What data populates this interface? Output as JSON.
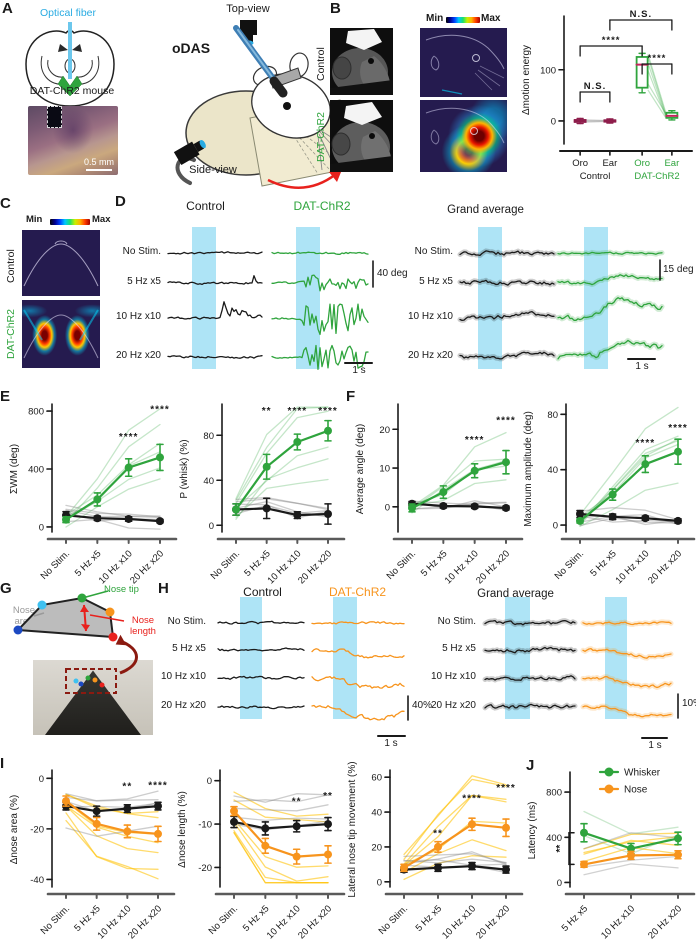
{
  "colors": {
    "green": "#2fa43d",
    "orange": "#f7941d",
    "black": "#1a1a1a",
    "stim_blue": "#aee4f6",
    "cyan": "#29abe2",
    "crimson": "#c2255c",
    "dark_red": "#8b1a10",
    "gray_label": "#9a9a9a"
  },
  "panels": {
    "a": "A",
    "b": "B",
    "c": "C",
    "d": "D",
    "e": "E",
    "f": "F",
    "g": "G",
    "h": "H",
    "i": "I",
    "j": "J"
  },
  "panelA": {
    "fiber": "Optical fiber",
    "mouse": "DAT-ChR2 mouse",
    "scale": "0.5 mm"
  },
  "setup": {
    "odas": "oDAS",
    "top": "Top-view",
    "side": "Side-view"
  },
  "panelB": {
    "control": "Control",
    "dat": "DAT-ChR2",
    "min": "Min",
    "max": "Max"
  },
  "panelC": {
    "control": "Control",
    "dat": "DAT-ChR2",
    "min": "Min",
    "max": "Max"
  },
  "panelD": {
    "control": "Control",
    "dat": "DAT-ChR2",
    "ga": "Grand average",
    "rows": [
      "No Stim.",
      "5 Hz x5",
      "10 Hz x10",
      "20 Hz x20"
    ],
    "scales": {
      "left": "40 deg",
      "right": "15 deg",
      "time": "1 s"
    }
  },
  "panelG": {
    "tip": "Nose tip",
    "area": "Nose area",
    "length": "Nose length"
  },
  "panelH": {
    "control": "Control",
    "dat": "DAT-ChR2",
    "ga": "Grand average",
    "rows": [
      "No Stim.",
      "5 Hz x5",
      "10 Hz x10",
      "20 Hz x20"
    ],
    "scales": {
      "left": "40%",
      "right": "10%",
      "time": "1 s"
    }
  },
  "chart_data": [
    {
      "id": "b-motion",
      "type": "box",
      "ylabel": "Δmotion energy",
      "ylim": [
        -45,
        205
      ],
      "yticks": [
        0,
        100
      ],
      "categories": [
        "Oro",
        "Ear",
        "Oro",
        "Ear"
      ],
      "cat_colors": [
        "#1a1a1a",
        "#1a1a1a",
        "#2fa43d",
        "#2fa43d"
      ],
      "group_labels": [
        {
          "text": "Control",
          "color": "#1a1a1a"
        },
        {
          "text": "DAT-ChR2",
          "color": "#2fa43d"
        }
      ],
      "boxes": [
        {
          "lo": -5,
          "q1": -2,
          "med": 0,
          "q3": 2,
          "hi": 5,
          "edge": "#8e1d4b",
          "median": "#8e1d4b"
        },
        {
          "lo": -4,
          "q1": -1.5,
          "med": 0,
          "q3": 1.5,
          "hi": 4,
          "edge": "#8e1d4b",
          "median": "#8e1d4b"
        },
        {
          "lo": 55,
          "q1": 65,
          "med": 110,
          "q3": 125,
          "hi": 132,
          "edge": "#2fa43d",
          "median": "#c2255c"
        },
        {
          "lo": 2,
          "q1": 6,
          "med": 10,
          "q3": 16,
          "hi": 20,
          "edge": "#2fa43d",
          "median": "#c2255c"
        }
      ],
      "pairs": [
        {
          "from": 2,
          "to": 3,
          "color": "rgba(47,164,61,0.3)",
          "values": [
            [
              130,
              16
            ],
            [
              124,
              12
            ],
            [
              112,
              10
            ],
            [
              98,
              8
            ],
            [
              72,
              14
            ],
            [
              60,
              6
            ]
          ]
        },
        {
          "from": 0,
          "to": 1,
          "color": "rgba(140,140,140,0.45)",
          "values": [
            [
              2,
              1
            ],
            [
              0,
              0
            ],
            [
              -2,
              -1
            ]
          ]
        }
      ],
      "brackets": [
        {
          "x1": 0,
          "x2": 1,
          "y": 88,
          "text": "N.S."
        },
        {
          "x1": 0,
          "x2": 2,
          "y": 42,
          "text": "****"
        },
        {
          "x1": 2,
          "x2": 3,
          "y": 60,
          "text": "****"
        },
        {
          "x1": 1,
          "x2": 3,
          "y": 16,
          "text": "N.S."
        }
      ]
    },
    {
      "id": "e1",
      "type": "line",
      "seed": 3,
      "ylabel": "ΣWM (deg)",
      "ylim": [
        -35,
        835
      ],
      "yticks": [
        0,
        400,
        800
      ],
      "categories": [
        "No Stim.",
        "5 Hz x5",
        "10 Hz x10",
        "20 Hz x20"
      ],
      "series": [
        {
          "name": "Control",
          "color": "#1a1a1a",
          "values": [
            80,
            60,
            55,
            40
          ],
          "errs": [
            25,
            15,
            15,
            12
          ]
        },
        {
          "name": "DAT-ChR2",
          "color": "#2fa43d",
          "values": [
            50,
            190,
            410,
            480
          ],
          "errs": [
            20,
            45,
            60,
            90
          ]
        }
      ],
      "faint": [
        {
          "series": 1,
          "color": "rgba(47,164,61,0.28)",
          "n": 6
        },
        {
          "series": 0,
          "color": "rgba(130,130,130,0.4)",
          "n": 5
        }
      ],
      "sig": [
        {
          "i": 2,
          "text": "****",
          "y": 600
        },
        {
          "i": 3,
          "text": "****",
          "y": 790
        }
      ]
    },
    {
      "id": "e2",
      "type": "line",
      "seed": 5,
      "ylabel": "P (whisk) (%)",
      "ylim": [
        -6,
        106
      ],
      "yticks": [
        0,
        40,
        80
      ],
      "categories": [
        "No Stim.",
        "5 Hz x5",
        "10 Hz x10",
        "20 Hz x20"
      ],
      "series": [
        {
          "name": "Control",
          "color": "#1a1a1a",
          "values": [
            14,
            15,
            9,
            10
          ],
          "errs": [
            5,
            9,
            3,
            9
          ]
        },
        {
          "name": "DAT-ChR2",
          "color": "#2fa43d",
          "values": [
            14,
            52,
            74,
            84
          ],
          "errs": [
            5,
            11,
            7,
            9
          ]
        }
      ],
      "faint": [
        {
          "series": 1,
          "color": "rgba(47,164,61,0.28)",
          "n": 6
        },
        {
          "series": 0,
          "color": "rgba(130,130,130,0.4)",
          "n": 5
        }
      ],
      "sig": [
        {
          "i": 1,
          "text": "**",
          "y": 99
        },
        {
          "i": 2,
          "text": "****",
          "y": 99
        },
        {
          "i": 3,
          "text": "****",
          "y": 99
        }
      ]
    },
    {
      "id": "f1",
      "type": "line",
      "seed": 8,
      "ylabel": "Average angle (deg)",
      "ylim": [
        -6.5,
        26
      ],
      "yticks": [
        0,
        10,
        20
      ],
      "categories": [
        "No Stim.",
        "5 Hz x5",
        "10 Hz x10",
        "20 Hz x20"
      ],
      "series": [
        {
          "name": "Control",
          "color": "#1a1a1a",
          "values": [
            0.8,
            0.2,
            0.1,
            -0.3
          ],
          "errs": [
            0.6,
            0.5,
            0.5,
            0.5
          ]
        },
        {
          "name": "DAT-ChR2",
          "color": "#2fa43d",
          "values": [
            -0.3,
            3.8,
            9.3,
            11.5
          ],
          "errs": [
            1,
            1.6,
            1.8,
            3
          ]
        }
      ],
      "faint": [
        {
          "series": 1,
          "color": "rgba(47,164,61,0.28)",
          "n": 6
        },
        {
          "series": 0,
          "color": "rgba(130,130,130,0.4)",
          "n": 4
        }
      ],
      "sig": [
        {
          "i": 2,
          "text": "****",
          "y": 16.5
        },
        {
          "i": 3,
          "text": "****",
          "y": 21.5
        }
      ]
    },
    {
      "id": "f2",
      "type": "line",
      "seed": 11,
      "ylabel": "Maximum amplitude (deg)",
      "ylim": [
        -5,
        86
      ],
      "yticks": [
        0,
        40,
        80
      ],
      "categories": [
        "No Stim.",
        "5 Hz x5",
        "10 Hz x10",
        "20 Hz x20"
      ],
      "series": [
        {
          "name": "Control",
          "color": "#1a1a1a",
          "values": [
            8,
            6,
            5,
            3
          ],
          "errs": [
            2.5,
            2,
            1.5,
            1.5
          ]
        },
        {
          "name": "DAT-ChR2",
          "color": "#2fa43d",
          "values": [
            3,
            22,
            44,
            53
          ],
          "errs": [
            1.5,
            4,
            6,
            9
          ]
        }
      ],
      "faint": [
        {
          "series": 1,
          "color": "rgba(47,164,61,0.28)",
          "n": 6
        },
        {
          "series": 0,
          "color": "rgba(130,130,130,0.4)",
          "n": 5
        }
      ],
      "sig": [
        {
          "i": 2,
          "text": "****",
          "y": 57
        },
        {
          "i": 3,
          "text": "****",
          "y": 68
        }
      ]
    },
    {
      "id": "i1",
      "type": "line",
      "seed": 21,
      "ylabel": "Δnose area (%)",
      "ylim": [
        -43,
        2.5
      ],
      "yticks": [
        0,
        -20,
        -40
      ],
      "categories": [
        "No Stim.",
        "5 Hz x5",
        "10 Hz x10",
        "20 Hz x20"
      ],
      "series": [
        {
          "name": "Control",
          "color": "#1a1a1a",
          "values": [
            -11,
            -13,
            -12,
            -11
          ],
          "errs": [
            1.5,
            2,
            1.5,
            1.5
          ]
        },
        {
          "name": "DAT-ChR2",
          "color": "#f7941d",
          "values": [
            -9,
            -18,
            -21,
            -22
          ],
          "errs": [
            2,
            2.5,
            2.5,
            3
          ]
        }
      ],
      "faint": [
        {
          "series": 1,
          "color": "rgba(255,195,10,0.6)",
          "n": 7
        },
        {
          "series": 0,
          "color": "rgba(130,130,130,0.4)",
          "n": 5
        }
      ],
      "sig": [
        {
          "i": 2,
          "text": "**",
          "y": -4.5
        },
        {
          "i": 3,
          "text": "****",
          "y": -4
        }
      ]
    },
    {
      "id": "i2",
      "type": "line",
      "seed": 22,
      "ylabel": "Δnose length (%)",
      "ylim": [
        -24.5,
        2
      ],
      "yticks": [
        0,
        -10,
        -20
      ],
      "categories": [
        "No Stim.",
        "5 Hz x5",
        "10 Hz x10",
        "20 Hz x20"
      ],
      "series": [
        {
          "name": "Control",
          "color": "#1a1a1a",
          "values": [
            -9.5,
            -11,
            -10.5,
            -10
          ],
          "errs": [
            1.3,
            1.5,
            1.3,
            1.5
          ]
        },
        {
          "name": "DAT-ChR2",
          "color": "#f7941d",
          "values": [
            -7,
            -15,
            -17.5,
            -17
          ],
          "errs": [
            1,
            1.7,
            1.7,
            2
          ]
        }
      ],
      "faint": [
        {
          "series": 1,
          "color": "rgba(255,195,10,0.6)",
          "n": 7
        },
        {
          "series": 0,
          "color": "rgba(130,130,130,0.4)",
          "n": 5
        }
      ],
      "sig": [
        {
          "i": 2,
          "text": "**",
          "y": -5.5
        },
        {
          "i": 3,
          "text": "**",
          "y": -4.2
        }
      ]
    },
    {
      "id": "i3",
      "type": "line",
      "seed": 23,
      "ylabel": "Lateral nose tip movement (%)",
      "ylim": [
        -3,
        63
      ],
      "yticks": [
        0,
        20,
        40,
        60
      ],
      "categories": [
        "No Stim.",
        "5 Hz x5",
        "10 Hz x10",
        "20 Hz x20"
      ],
      "series": [
        {
          "name": "Control",
          "color": "#1a1a1a",
          "values": [
            7,
            8,
            9,
            7
          ],
          "errs": [
            1.5,
            2,
            2,
            2
          ]
        },
        {
          "name": "DAT-ChR2",
          "color": "#f7941d",
          "values": [
            8,
            20,
            33,
            31
          ],
          "errs": [
            2,
            3,
            3.5,
            5
          ]
        }
      ],
      "faint": [
        {
          "series": 1,
          "color": "rgba(255,195,10,0.6)",
          "n": 7
        },
        {
          "series": 0,
          "color": "rgba(130,130,130,0.4)",
          "n": 5
        }
      ],
      "sig": [
        {
          "i": 1,
          "text": "**",
          "y": 26
        },
        {
          "i": 2,
          "text": "****",
          "y": 46
        },
        {
          "i": 3,
          "text": "****",
          "y": 52
        }
      ]
    },
    {
      "id": "j",
      "type": "line",
      "seed": 31,
      "ylabel": "Latency (ms)",
      "ylim": [
        -40,
        960
      ],
      "yticks": [
        0,
        400,
        800
      ],
      "categories": [
        "5 Hz x5",
        "10 Hz x10",
        "20 Hz x20"
      ],
      "legend": true,
      "series": [
        {
          "name": "Whisker",
          "color": "#2fa43d",
          "values": [
            440,
            300,
            390
          ],
          "errs": [
            80,
            45,
            55
          ]
        },
        {
          "name": "Nose",
          "color": "#f7941d",
          "values": [
            160,
            240,
            245
          ],
          "errs": [
            25,
            35,
            35
          ]
        }
      ],
      "faint": [
        {
          "series": 0,
          "color": "rgba(47,164,61,0.25)",
          "n": 2
        },
        {
          "series": 1,
          "color": "rgba(255,195,10,0.6)",
          "n": 4
        },
        {
          "series": 1,
          "color": "rgba(140,140,140,0.4)",
          "n": 3
        }
      ],
      "vbracket": {
        "i": 0,
        "text": "**"
      }
    }
  ]
}
